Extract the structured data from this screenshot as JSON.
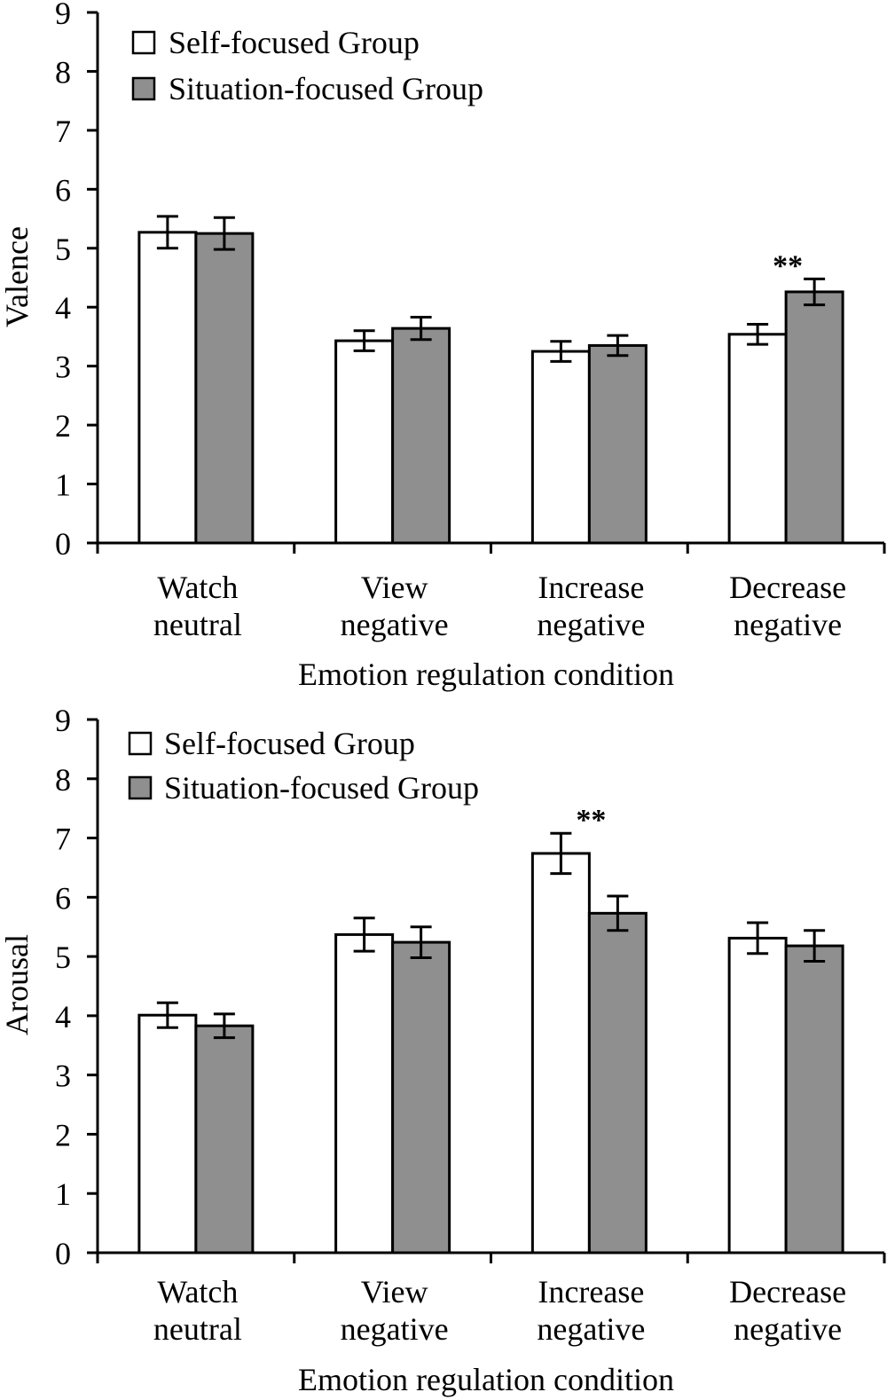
{
  "chart_data": [
    {
      "type": "bar",
      "title": "",
      "xlabel": "Emotion regulation condition",
      "ylabel": "Valence",
      "ylim": [
        0,
        9
      ],
      "yticks": [
        "0",
        "1",
        "2",
        "3",
        "4",
        "5",
        "6",
        "7",
        "8",
        "9"
      ],
      "grid": false,
      "legend_position": "top-left",
      "categories": [
        [
          "Watch",
          "neutral"
        ],
        [
          "View",
          "negative"
        ],
        [
          "Increase",
          "negative"
        ],
        [
          "Decrease",
          "negative"
        ]
      ],
      "series": [
        {
          "name": "Self-focused Group",
          "color": "#ffffff",
          "values": [
            5.27,
            3.43,
            3.25,
            3.54
          ],
          "errors": [
            0.27,
            0.17,
            0.17,
            0.17
          ]
        },
        {
          "name": "Situation-focused Group",
          "color": "#8f8f8f",
          "values": [
            5.25,
            3.64,
            3.35,
            4.26
          ],
          "errors": [
            0.27,
            0.19,
            0.17,
            0.22
          ]
        }
      ],
      "annotations": [
        {
          "text": "**",
          "category_index": 3
        }
      ]
    },
    {
      "type": "bar",
      "title": "",
      "xlabel": "Emotion regulation condition",
      "ylabel": "Arousal",
      "ylim": [
        0,
        9
      ],
      "yticks": [
        "0",
        "1",
        "2",
        "3",
        "4",
        "5",
        "6",
        "7",
        "8",
        "9"
      ],
      "grid": false,
      "legend_position": "top-left",
      "categories": [
        [
          "Watch",
          "neutral"
        ],
        [
          "View",
          "negative"
        ],
        [
          "Increase",
          "negative"
        ],
        [
          "Decrease",
          "negative"
        ]
      ],
      "series": [
        {
          "name": "Self-focused Group",
          "color": "#ffffff",
          "values": [
            4.01,
            5.37,
            6.74,
            5.31
          ],
          "errors": [
            0.21,
            0.28,
            0.34,
            0.26
          ]
        },
        {
          "name": "Situation-focused Group",
          "color": "#8f8f8f",
          "values": [
            3.83,
            5.24,
            5.73,
            5.18
          ],
          "errors": [
            0.2,
            0.26,
            0.29,
            0.26
          ]
        }
      ],
      "annotations": [
        {
          "text": "**",
          "category_index": 2
        }
      ]
    }
  ]
}
